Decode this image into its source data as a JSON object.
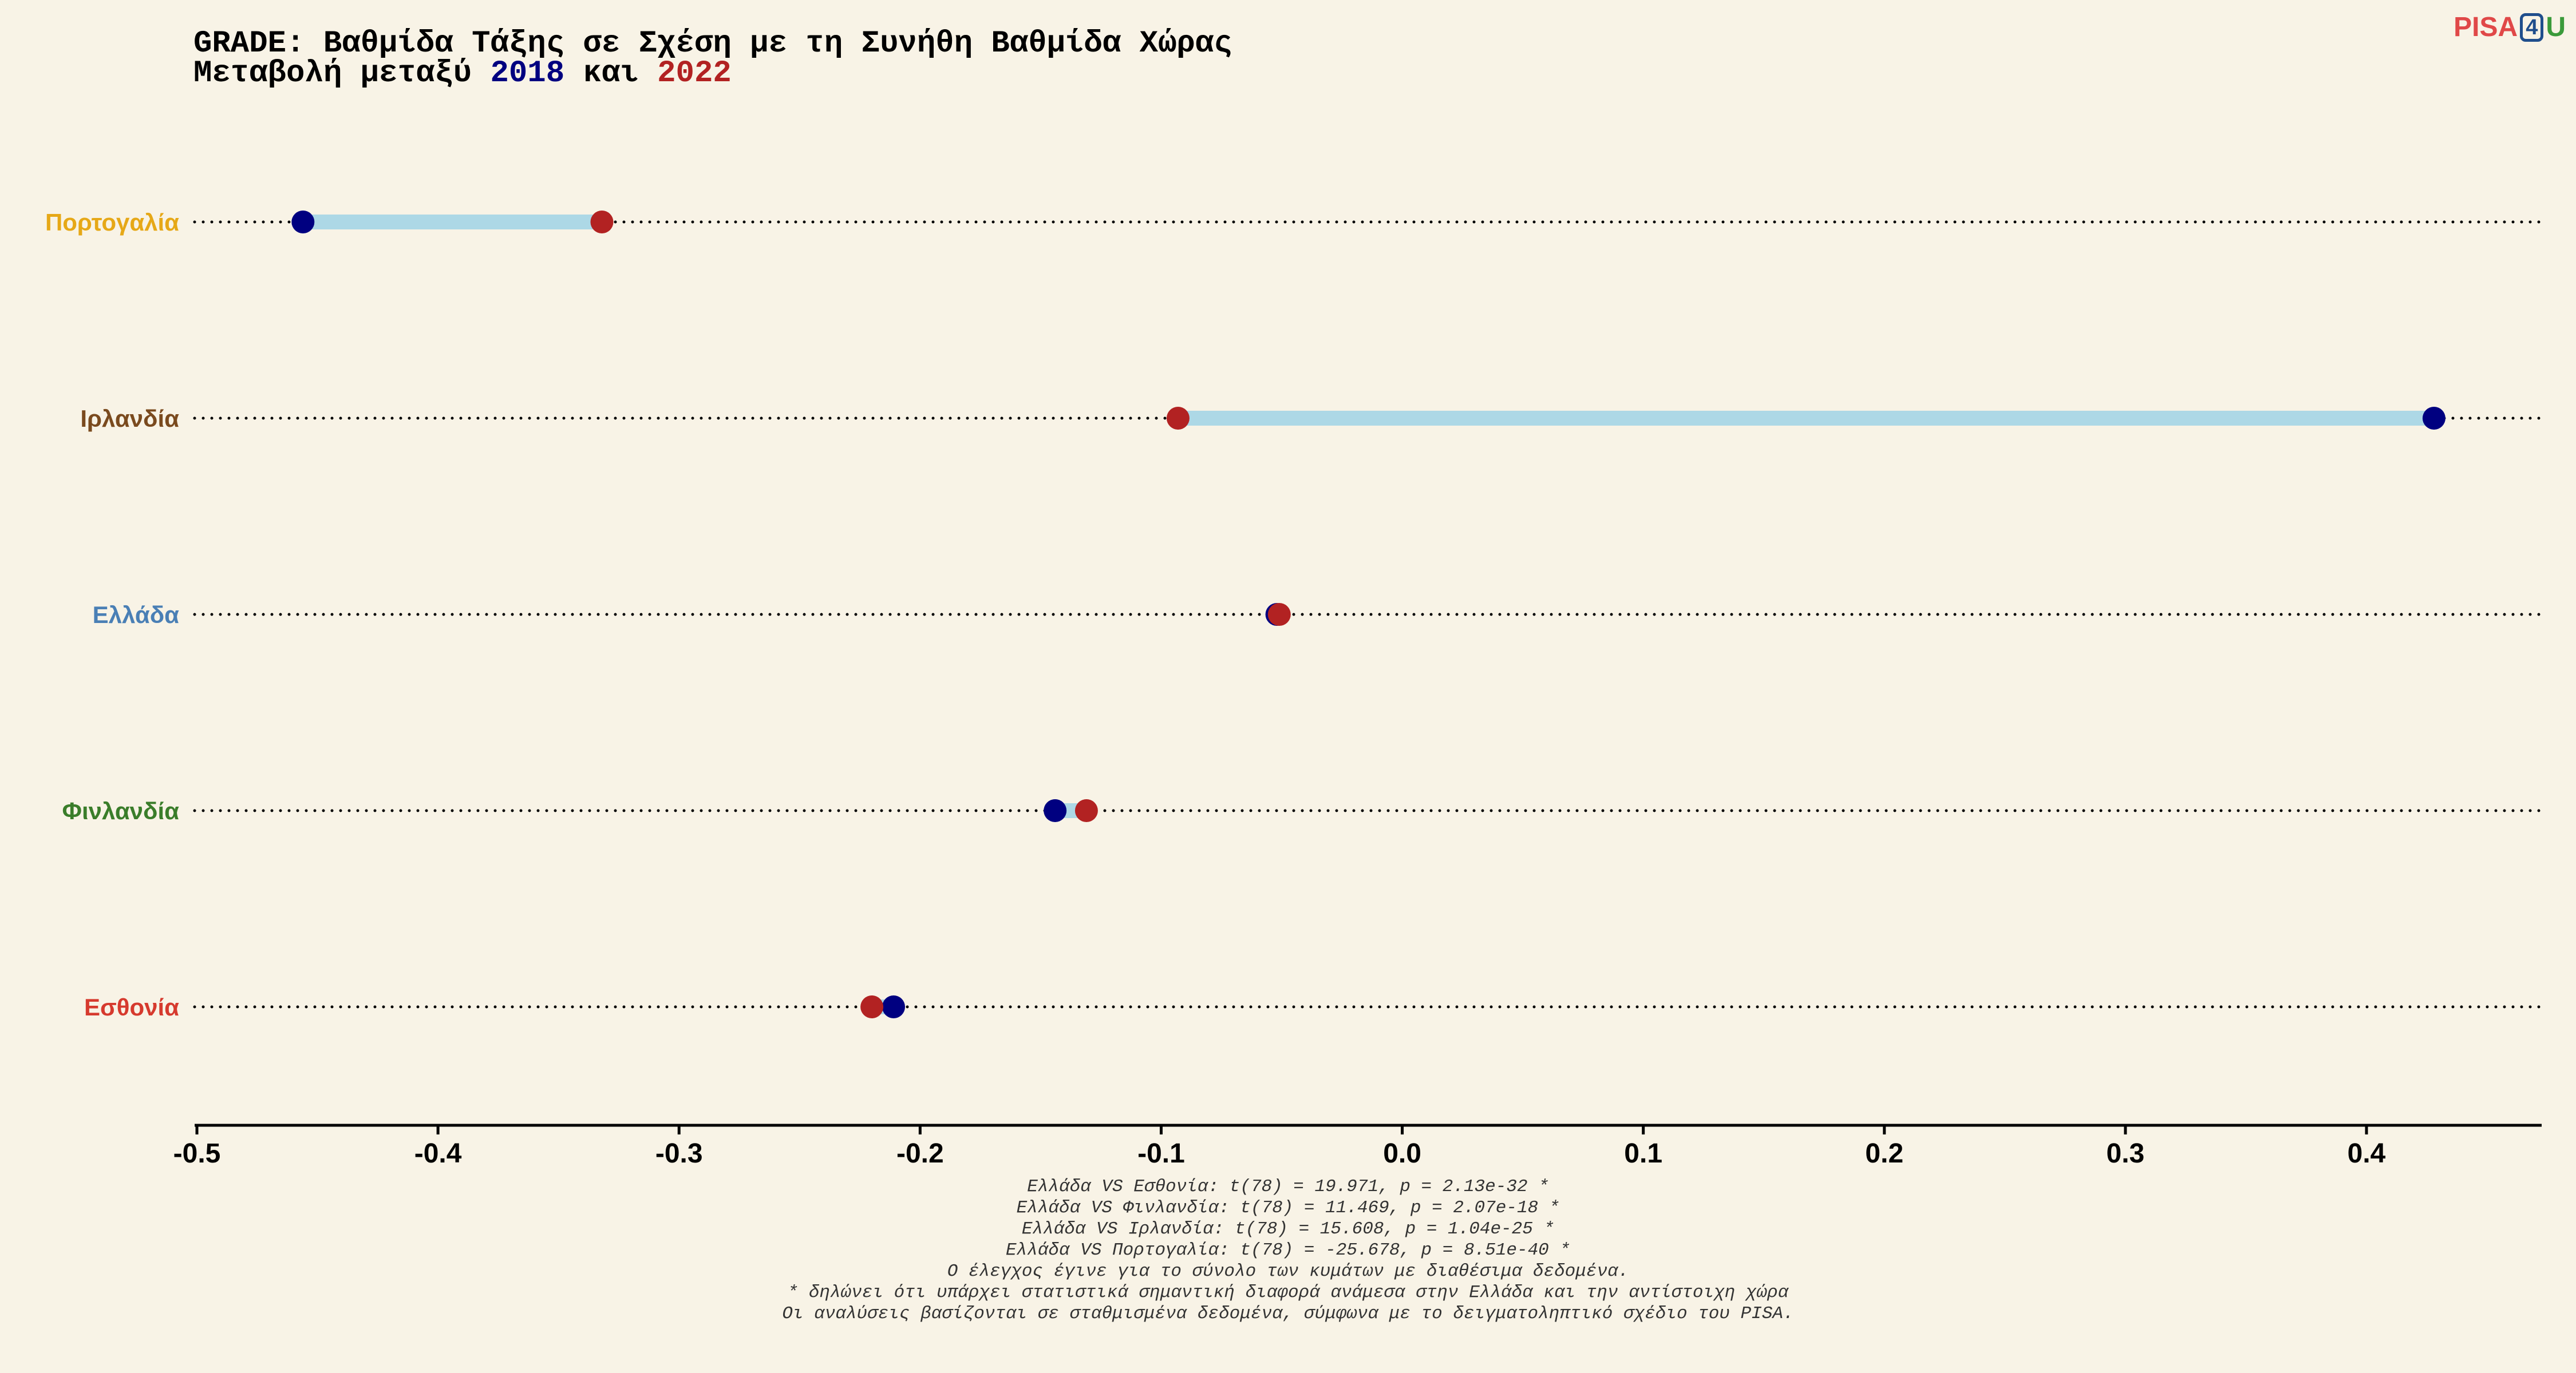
{
  "title_prefix": "GRADE: Βαθμίδα Τάξης σε Σχέση με τη Συνήθη Βαθμίδα Χώρας",
  "subtitle_parts": {
    "before": "Μεταβολή μεταξύ ",
    "year_a": "2018",
    "middle": " και ",
    "year_b": "2022"
  },
  "logo": {
    "part1": "PISA",
    "part2": "4",
    "part3": "U"
  },
  "colors": {
    "year_2018": "#000080",
    "year_2022": "#b22222",
    "segment": "#add8e6",
    "country_portugal": "#e6a817",
    "country_ireland": "#7a4a1e",
    "country_greece": "#4a7fb5",
    "country_finland": "#3a7d2a",
    "country_estonia": "#d63a2e"
  },
  "chart_data": {
    "type": "dumbbell",
    "xlim": [
      -0.5,
      0.47
    ],
    "xticks": [
      "-0.5",
      "-0.4",
      "-0.3",
      "-0.2",
      "-0.1",
      "0.0",
      "0.1",
      "0.2",
      "0.3",
      "0.4"
    ],
    "grid": "dotted row guides",
    "countries": [
      {
        "name": "Πορτογαλία",
        "v2018": -0.456,
        "v2022": -0.332
      },
      {
        "name": "Ιρλανδία",
        "v2018": 0.428,
        "v2022": -0.093
      },
      {
        "name": "Ελλάδα",
        "v2018": -0.052,
        "v2022": -0.051
      },
      {
        "name": "Φινλανδία",
        "v2018": -0.144,
        "v2022": -0.131
      },
      {
        "name": "Εσθονία",
        "v2018": -0.211,
        "v2022": -0.22
      }
    ]
  },
  "footer_lines": [
    "Ελλάδα VS Εσθονία: t(78) = 19.971, p = 2.13e-32 *",
    "Ελλάδα VS Φινλανδία: t(78) = 11.469, p = 2.07e-18 *",
    "Ελλάδα VS Ιρλανδία: t(78) = 15.608, p = 1.04e-25 *",
    "Ελλάδα VS Πορτογαλία: t(78) = -25.678, p = 8.51e-40 *",
    "Ο έλεγχος έγινε για το σύνολο των κυμάτων με διαθέσιμα δεδομένα.",
    "* δηλώνει ότι υπάρχει στατιστικά σημαντική διαφορά ανάμεσα στην Ελλάδα και την αντίστοιχη χώρα",
    "Οι αναλύσεις βασίζονται σε σταθμισμένα δεδομένα, σύμφωνα με το δειγματοληπτικό σχέδιο του PISA."
  ]
}
